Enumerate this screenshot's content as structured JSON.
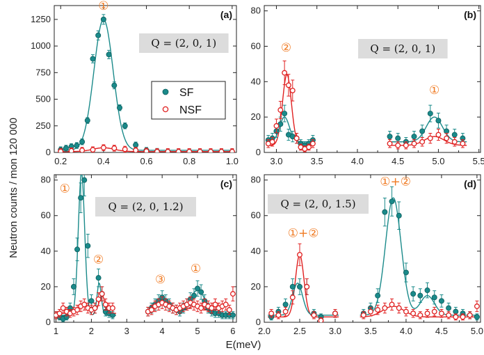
{
  "figure": {
    "ylabel": "Neutron counts / mon 120 000",
    "xlabel": "E(meV)",
    "legend": [
      {
        "label": "SF",
        "color": "#1a8a8a"
      },
      {
        "label": "NSF",
        "color": "#e02020"
      }
    ],
    "colors": {
      "sf": "#1a8a8a",
      "nsf": "#e02020",
      "annotation": "#f07a22",
      "qbox": "#dcdcdc"
    }
  },
  "chart_data": [
    {
      "type": "scatter",
      "panel": "(a)",
      "q_label": "Q = (2, 0, 1)",
      "xlim": [
        0.17,
        1.02
      ],
      "ylim": [
        0,
        1380
      ],
      "xticks": [
        "0.2",
        "0.4",
        "0.6",
        "0.8",
        "1.0"
      ],
      "yticks": [
        "0",
        "250",
        "500",
        "750",
        "1000",
        "1250"
      ],
      "annotations": [
        {
          "text": "①",
          "x": 0.4,
          "y": 1340
        }
      ],
      "series": [
        {
          "name": "SF",
          "x": [
            0.2,
            0.225,
            0.25,
            0.275,
            0.3,
            0.325,
            0.35,
            0.375,
            0.4,
            0.425,
            0.45,
            0.475,
            0.5,
            0.55,
            0.6,
            0.65,
            0.7,
            0.75,
            0.8,
            0.85,
            0.9,
            0.95,
            1.0
          ],
          "y": [
            25,
            40,
            55,
            65,
            100,
            300,
            880,
            1100,
            1250,
            920,
            630,
            420,
            250,
            70,
            20,
            10,
            5,
            5,
            5,
            5,
            5,
            5,
            5
          ]
        },
        {
          "name": "NSF",
          "x": [
            0.2,
            0.25,
            0.3,
            0.35,
            0.4,
            0.45,
            0.5,
            0.55,
            0.6,
            0.65,
            0.7,
            0.75,
            0.8,
            0.85,
            0.9,
            0.95,
            1.0
          ],
          "y": [
            10,
            15,
            20,
            25,
            45,
            40,
            30,
            20,
            12,
            8,
            8,
            8,
            8,
            8,
            8,
            8,
            8
          ]
        }
      ],
      "fit": {
        "SF": {
          "baseline": 20,
          "peaks": [
            {
              "center": 0.4,
              "amp": 1230,
              "sigma": 0.045
            }
          ]
        },
        "NSF": {
          "baseline": 8,
          "peaks": [
            {
              "center": 0.4,
              "amp": 36,
              "sigma": 0.05
            }
          ]
        }
      }
    },
    {
      "type": "scatter",
      "panel": "(b)",
      "q_label": "Q = (2, 0, 1)",
      "xlim": [
        2.85,
        5.52
      ],
      "ylim": [
        0,
        83
      ],
      "xticks": [
        "3.0",
        "3.5",
        "4.0",
        "4.5",
        "5.0",
        "5.5"
      ],
      "yticks": [
        "0",
        "20",
        "40",
        "60",
        "80"
      ],
      "annotations": [
        {
          "text": "②",
          "x": 3.12,
          "y": 57
        },
        {
          "text": "①",
          "x": 4.95,
          "y": 33
        }
      ],
      "series": [
        {
          "name": "SF",
          "x": [
            2.9,
            2.95,
            3.0,
            3.05,
            3.1,
            3.15,
            3.2,
            3.25,
            3.3,
            3.35,
            3.4,
            3.45,
            4.4,
            4.5,
            4.6,
            4.7,
            4.8,
            4.9,
            5.0,
            5.1,
            5.2,
            5.3
          ],
          "y": [
            7,
            8,
            12,
            16,
            22,
            10,
            9,
            8,
            5,
            4,
            5,
            7,
            9,
            8,
            6,
            9,
            12,
            22,
            18,
            12,
            10,
            8
          ]
        },
        {
          "name": "NSF",
          "x": [
            2.9,
            2.95,
            3.0,
            3.05,
            3.1,
            3.15,
            3.2,
            3.25,
            3.3,
            3.35,
            3.4,
            3.45,
            4.4,
            4.5,
            4.6,
            4.7,
            4.8,
            4.9,
            5.0,
            5.1,
            5.2,
            5.3
          ],
          "y": [
            5,
            6,
            15,
            24,
            45,
            38,
            35,
            8,
            3,
            2,
            3,
            5,
            5,
            4,
            4,
            5,
            6,
            8,
            10,
            8,
            6,
            5
          ]
        }
      ],
      "fit": {
        "SF": {
          "baseline": 6,
          "segments": [
            [
              2.9,
              3.45
            ],
            [
              4.4,
              5.35
            ]
          ],
          "peaks": [
            {
              "center": 3.1,
              "amp": 14,
              "sigma": 0.06
            },
            {
              "center": 4.95,
              "amp": 14,
              "sigma": 0.1
            }
          ]
        },
        "NSF": {
          "baseline": 4,
          "segments": [
            [
              2.9,
              3.45
            ],
            [
              4.4,
              5.35
            ]
          ],
          "peaks": [
            {
              "center": 3.13,
              "amp": 40,
              "sigma": 0.055
            },
            {
              "center": 4.95,
              "amp": 5,
              "sigma": 0.12
            }
          ]
        }
      }
    },
    {
      "type": "scatter",
      "panel": "(c)",
      "q_label": "Q = (2, 0, 1.2)",
      "xlim": [
        0.95,
        6.1
      ],
      "ylim": [
        0,
        83
      ],
      "xticks": [
        "1",
        "2",
        "3",
        "4",
        "5",
        "6"
      ],
      "yticks": [
        "0",
        "20",
        "40",
        "60",
        "80"
      ],
      "annotations": [
        {
          "text": "①",
          "x": 1.25,
          "y": 73
        },
        {
          "text": "②",
          "x": 2.2,
          "y": 33
        },
        {
          "text": "③",
          "x": 3.95,
          "y": 22
        },
        {
          "text": "①",
          "x": 4.95,
          "y": 28
        }
      ],
      "series": [
        {
          "name": "SF",
          "x": [
            1.0,
            1.1,
            1.2,
            1.3,
            1.4,
            1.5,
            1.6,
            1.7,
            1.8,
            1.9,
            2.0,
            2.1,
            2.2,
            2.3,
            2.4,
            2.5,
            2.6,
            3.6,
            3.7,
            3.8,
            3.9,
            4.0,
            4.1,
            4.2,
            4.3,
            4.4,
            4.5,
            4.6,
            4.7,
            4.8,
            4.9,
            5.0,
            5.1,
            5.2,
            5.3,
            5.4,
            5.5,
            5.6,
            5.7,
            5.8,
            5.9,
            6.0
          ],
          "y": [
            4,
            3,
            2,
            3,
            8,
            20,
            41,
            70,
            80,
            43,
            12,
            8,
            25,
            16,
            6,
            5,
            4,
            6,
            8,
            10,
            12,
            14,
            12,
            10,
            8,
            7,
            6,
            8,
            10,
            13,
            15,
            19,
            17,
            12,
            8,
            6,
            5,
            5,
            4,
            4,
            4,
            4
          ]
        },
        {
          "name": "NSF",
          "x": [
            1.0,
            1.1,
            1.2,
            1.3,
            1.4,
            1.5,
            1.6,
            1.7,
            1.8,
            1.9,
            2.0,
            2.1,
            2.2,
            2.3,
            2.4,
            2.5,
            2.6,
            3.6,
            3.7,
            3.8,
            3.9,
            4.0,
            4.1,
            4.2,
            4.3,
            4.4,
            4.5,
            4.6,
            4.7,
            4.8,
            4.9,
            5.0,
            5.1,
            5.2,
            5.3,
            5.4,
            5.5,
            5.6,
            5.7,
            5.8,
            5.9,
            6.0
          ],
          "y": [
            4,
            5,
            8,
            6,
            5,
            6,
            7,
            9,
            10,
            8,
            7,
            8,
            13,
            16,
            10,
            8,
            8,
            6,
            7,
            9,
            10,
            11,
            10,
            9,
            8,
            7,
            8,
            9,
            10,
            11,
            10,
            9,
            8,
            10,
            9,
            8,
            10,
            8,
            9,
            10,
            7,
            16
          ]
        }
      ],
      "fit": {
        "SF": {
          "baseline": 4,
          "segments": [
            [
              1.0,
              2.7
            ],
            [
              3.55,
              6.0
            ]
          ],
          "peaks": [
            {
              "center": 1.72,
              "amp": 80,
              "sigma": 0.09
            },
            {
              "center": 2.22,
              "amp": 18,
              "sigma": 0.06
            },
            {
              "center": 4.0,
              "amp": 10,
              "sigma": 0.2
            },
            {
              "center": 5.0,
              "amp": 14,
              "sigma": 0.22
            }
          ]
        },
        "NSF": {
          "baseline": 5,
          "segments": [
            [
              1.0,
              2.7
            ],
            [
              3.55,
              6.0
            ]
          ],
          "peaks": [
            {
              "center": 1.8,
              "amp": 4,
              "sigma": 0.2
            },
            {
              "center": 2.3,
              "amp": 10,
              "sigma": 0.08
            },
            {
              "center": 4.05,
              "amp": 5,
              "sigma": 0.25
            },
            {
              "center": 4.95,
              "amp": 4,
              "sigma": 0.25
            }
          ]
        }
      }
    },
    {
      "type": "scatter",
      "panel": "(d)",
      "q_label": "Q = (2, 0, 1.5)",
      "xlim": [
        2.0,
        5.05
      ],
      "ylim": [
        0,
        83
      ],
      "xticks": [
        "2.0",
        "2.5",
        "3.0",
        "3.5",
        "4.0",
        "4.5",
        "5.0"
      ],
      "yticks": [
        "0",
        "20",
        "40",
        "60",
        "80"
      ],
      "annotations": [
        {
          "text": "①+②",
          "x": 2.55,
          "y": 48
        },
        {
          "text": "①+②",
          "x": 3.85,
          "y": 77
        }
      ],
      "series": [
        {
          "name": "SF",
          "x": [
            2.1,
            2.2,
            2.3,
            2.4,
            2.5,
            2.6,
            2.7,
            2.8,
            3.0,
            3.4,
            3.5,
            3.6,
            3.7,
            3.8,
            3.9,
            4.0,
            4.1,
            4.2,
            4.3,
            4.4,
            4.5,
            4.6,
            4.7,
            4.8,
            4.9,
            5.0
          ],
          "y": [
            3,
            6,
            10,
            20,
            20,
            20,
            5,
            3,
            5,
            5,
            8,
            15,
            62,
            68,
            60,
            28,
            16,
            15,
            18,
            14,
            12,
            8,
            6,
            5,
            4,
            3
          ]
        },
        {
          "name": "NSF",
          "x": [
            2.1,
            2.2,
            2.3,
            2.4,
            2.5,
            2.6,
            2.7,
            2.8,
            3.0,
            3.4,
            3.5,
            3.6,
            3.7,
            3.8,
            3.9,
            4.0,
            4.1,
            4.2,
            4.3,
            4.4,
            4.5,
            4.6,
            4.7,
            4.8,
            4.9,
            5.0
          ],
          "y": [
            5,
            4,
            6,
            14,
            38,
            20,
            4,
            1,
            5,
            4,
            6,
            7,
            8,
            10,
            8,
            6,
            5,
            4,
            5,
            6,
            5,
            4,
            3,
            3,
            4,
            9
          ]
        }
      ],
      "fit": {
        "SF": {
          "baseline": 4,
          "segments": [
            [
              2.05,
              3.05
            ],
            [
              3.35,
              5.0
            ]
          ],
          "peaks": [
            {
              "center": 2.47,
              "amp": 18,
              "sigma": 0.07
            },
            {
              "center": 3.82,
              "amp": 66,
              "sigma": 0.11
            },
            {
              "center": 4.3,
              "amp": 11,
              "sigma": 0.1
            }
          ]
        },
        "NSF": {
          "baseline": 3,
          "segments": [
            [
              2.05,
              3.05
            ],
            [
              3.35,
              5.0
            ]
          ],
          "peaks": [
            {
              "center": 2.5,
              "amp": 35,
              "sigma": 0.06
            },
            {
              "center": 3.82,
              "amp": 6,
              "sigma": 0.15
            }
          ]
        }
      }
    }
  ]
}
